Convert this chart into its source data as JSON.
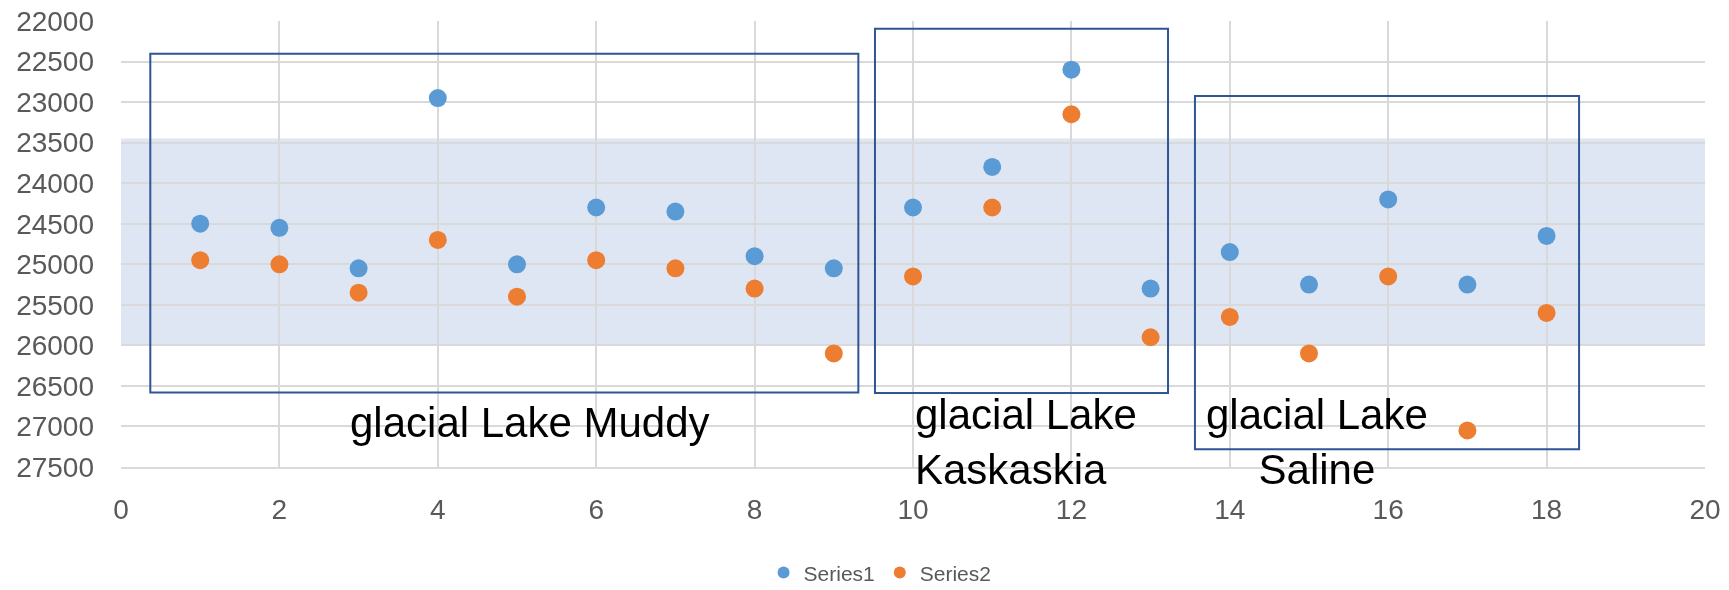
{
  "chart_data": {
    "type": "scatter",
    "x": [
      1,
      2,
      3,
      4,
      5,
      6,
      7,
      8,
      9,
      10,
      11,
      12,
      13,
      14,
      15,
      16,
      17,
      18
    ],
    "series": [
      {
        "name": "Series1",
        "color": "#5b9bd5",
        "values": [
          24500,
          24550,
          25050,
          22950,
          25000,
          24300,
          24350,
          24900,
          25050,
          24300,
          23800,
          22600,
          25300,
          24850,
          25250,
          24200,
          25250,
          24650
        ]
      },
      {
        "name": "Series2",
        "color": "#ed7d31",
        "values": [
          24950,
          25000,
          25350,
          24700,
          25400,
          24950,
          25050,
          25300,
          26100,
          25150,
          24300,
          23150,
          25900,
          25650,
          26100,
          25150,
          27050,
          25600
        ]
      }
    ],
    "xlim": [
      0,
      20
    ],
    "xticks": [
      0,
      2,
      4,
      6,
      8,
      10,
      12,
      14,
      16,
      18,
      20
    ],
    "ylim": [
      27500,
      22000
    ],
    "yticks": [
      22000,
      22500,
      23000,
      23500,
      24000,
      24500,
      25000,
      25500,
      26000,
      26500,
      27000,
      27500
    ],
    "bands": [
      {
        "axis": "y",
        "from": 23450,
        "to": 26000,
        "color": "#dfe6f3"
      }
    ],
    "annotations": [
      "glacial Lake Muddy",
      "glacial Lake\nKaskaskia",
      "glacial Lake\nSaline"
    ],
    "grid": true,
    "legend": "bottom",
    "marker": "circle"
  }
}
